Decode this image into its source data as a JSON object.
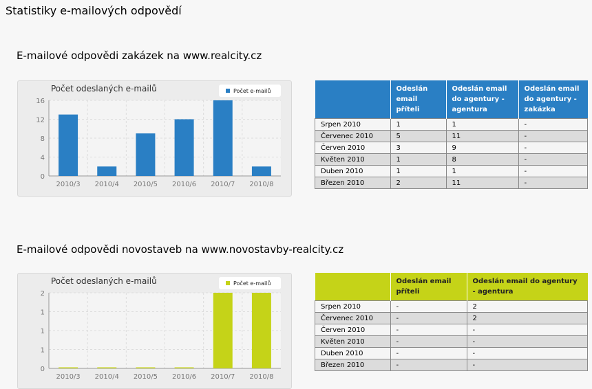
{
  "page": {
    "title": "Statistiky e-mailových odpovědí"
  },
  "colors": {
    "blue": "#2a7fc4",
    "green": "#c5d318"
  },
  "section1": {
    "title": "E-mailové odpovědi zakázek na www.realcity.cz",
    "chart_title": "Počet odeslaných e-mailů",
    "legend": "Počet e-mailů",
    "table": {
      "headers": [
        "",
        "Odeslán email příteli",
        "Odeslán email do agentury - agentura",
        "Odeslán email do agentury - zakázka"
      ],
      "rows": [
        [
          "Srpen 2010",
          "1",
          "1",
          "-"
        ],
        [
          "Červenec 2010",
          "5",
          "11",
          "-"
        ],
        [
          "Červen 2010",
          "3",
          "9",
          "-"
        ],
        [
          "Květen 2010",
          "1",
          "8",
          "-"
        ],
        [
          "Duben 2010",
          "1",
          "1",
          "-"
        ],
        [
          "Březen 2010",
          "2",
          "11",
          "-"
        ]
      ]
    }
  },
  "section2": {
    "title": "E-mailové odpovědi novostaveb na www.novostavby-realcity.cz",
    "chart_title": "Počet odeslaných e-mailů",
    "legend": "Počet e-mailů",
    "table": {
      "headers": [
        "",
        "Odeslán email příteli",
        "Odeslán email do agentury - agentura"
      ],
      "rows": [
        [
          "Srpen 2010",
          "-",
          "2"
        ],
        [
          "Červenec 2010",
          "-",
          "2"
        ],
        [
          "Červen 2010",
          "-",
          "-"
        ],
        [
          "Květen 2010",
          "-",
          "-"
        ],
        [
          "Duben 2010",
          "-",
          "-"
        ],
        [
          "Březen 2010",
          "-",
          "-"
        ]
      ]
    }
  },
  "chart_data": [
    {
      "type": "bar",
      "title": "Počet odeslaných e-mailů",
      "categories": [
        "2010/3",
        "2010/4",
        "2010/5",
        "2010/6",
        "2010/7",
        "2010/8"
      ],
      "series": [
        {
          "name": "Počet e-mailů",
          "values": [
            13,
            2,
            9,
            12,
            16,
            2
          ]
        }
      ],
      "ylim": [
        0,
        16
      ],
      "yticks": [
        "0",
        "4",
        "8",
        "12",
        "16"
      ],
      "grid": true,
      "legend": "top-right"
    },
    {
      "type": "bar",
      "title": "Počet odeslaných e-mailů",
      "categories": [
        "2010/3",
        "2010/4",
        "2010/5",
        "2010/6",
        "2010/7",
        "2010/8"
      ],
      "series": [
        {
          "name": "Počet e-mailů",
          "values": [
            0,
            0,
            0,
            0,
            2,
            2
          ]
        }
      ],
      "ylim": [
        0,
        2
      ],
      "yticks": [
        "0",
        "1",
        "1",
        "1",
        "2"
      ],
      "grid": true,
      "legend": "top-right"
    }
  ]
}
